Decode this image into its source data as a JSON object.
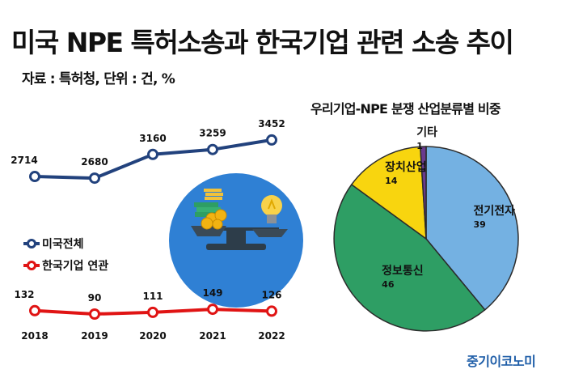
{
  "title": "미국 NPE 특허소송과 한국기업 관련 소송 추이",
  "source": "자료 : 특허청, 단위 : 건, %",
  "brand": "중기이코노미",
  "colors": {
    "us_total": "#22427d",
    "korea": "#e01414",
    "electric": "#74b1e2",
    "info": "#2e9e64",
    "device": "#f8d50f",
    "other": "#6a3a8e"
  },
  "icons": [
    "money-scale-icon",
    "lightbulb-icon"
  ],
  "chart_data": [
    {
      "type": "line",
      "categories": [
        "2018",
        "2019",
        "2020",
        "2021",
        "2022"
      ],
      "series": [
        {
          "name": "미국전체",
          "values": [
            2714,
            2680,
            3160,
            3259,
            3452
          ]
        },
        {
          "name": "한국기업 연관",
          "values": [
            132,
            90,
            111,
            149,
            126
          ]
        }
      ],
      "legend": "left",
      "grid": false
    },
    {
      "type": "pie",
      "title": "우리기업-NPE 분쟁 산업분류별 비중",
      "slices": [
        {
          "label": "전기전자",
          "value": 39
        },
        {
          "label": "정보통신",
          "value": 46
        },
        {
          "label": "장치산업",
          "value": 14
        },
        {
          "label": "기타",
          "value": 1
        }
      ]
    }
  ]
}
